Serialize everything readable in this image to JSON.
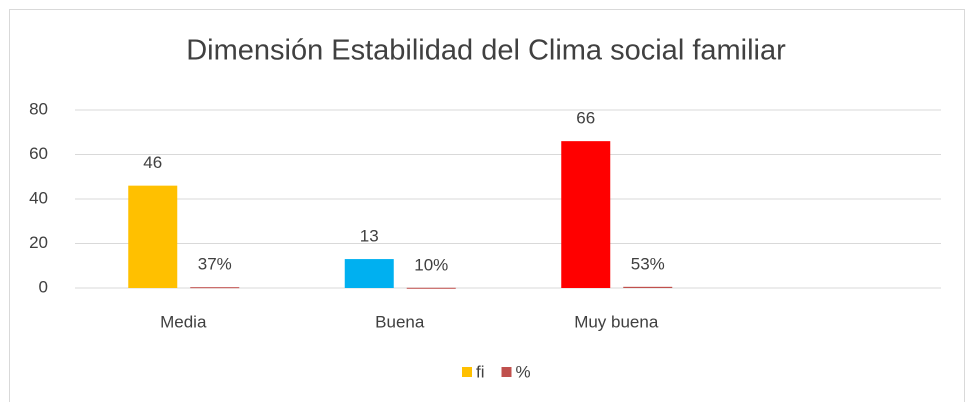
{
  "chart_data": {
    "type": "bar",
    "title": "Dimensión Estabilidad del Clima social familiar",
    "categories": [
      "Media",
      "Buena",
      "Muy buena",
      null
    ],
    "series": [
      {
        "name": "fi",
        "color": "#ffc000",
        "colors": [
          "#ffc000",
          "#00b0f0",
          "#ff0000",
          null
        ],
        "values": [
          46,
          13,
          66,
          null
        ]
      },
      {
        "name": "%",
        "color": "#c0504d",
        "values": [
          0.37,
          0.1,
          0.53,
          null
        ],
        "value_labels": [
          "37%",
          "10%",
          "53%",
          null
        ]
      }
    ],
    "ylim": [
      0,
      80
    ],
    "yticks": [
      0,
      20,
      40,
      60,
      80
    ],
    "grid": true,
    "legend": "bottom"
  }
}
